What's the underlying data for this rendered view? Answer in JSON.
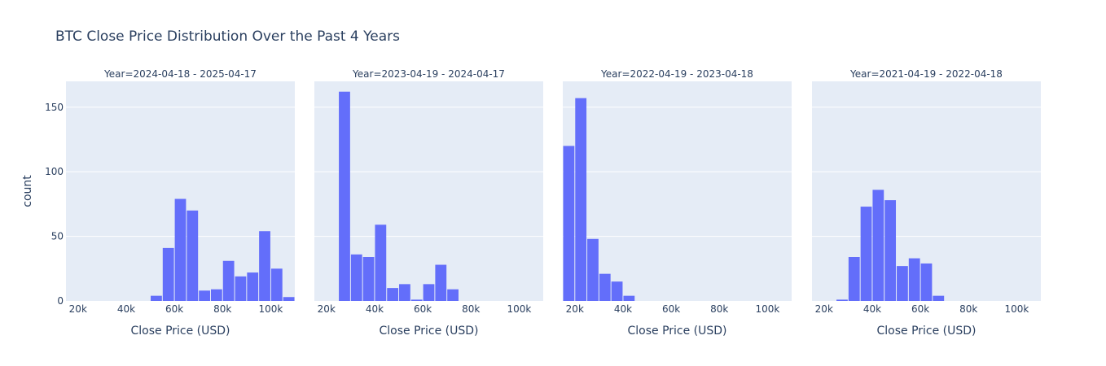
{
  "figure": {
    "title": "BTC Close Price Distribution Over the Past 4 Years",
    "ylabel": "count",
    "colors": {
      "bar": "#636efa",
      "plot_bg": "#e5ecf6",
      "grid": "#ffffff",
      "text": "#2a3f5f"
    }
  },
  "chart_data": [
    {
      "type": "bar",
      "facet": "Year=2024-04-18 - 2025-04-17",
      "xlabel": "Close Price (USD)",
      "ylabel": "count",
      "xlim": [
        15000,
        110000
      ],
      "ylim": [
        0,
        170
      ],
      "x_ticks": [
        20000,
        40000,
        60000,
        80000,
        100000
      ],
      "x_tick_labels": [
        "20k",
        "40k",
        "60k",
        "80k",
        "100k"
      ],
      "y_ticks": [
        0,
        50,
        100,
        150
      ],
      "y_tick_labels": [
        "0",
        "50",
        "100",
        "150"
      ],
      "bin_width": 5000,
      "bin_starts": [
        50000,
        55000,
        60000,
        65000,
        70000,
        75000,
        80000,
        85000,
        90000,
        95000,
        100000,
        105000
      ],
      "values": [
        4,
        41,
        79,
        70,
        8,
        9,
        31,
        19,
        22,
        54,
        25,
        3
      ]
    },
    {
      "type": "bar",
      "facet": "Year=2023-04-19 - 2024-04-17",
      "xlabel": "Close Price (USD)",
      "ylabel": "",
      "xlim": [
        15000,
        110000
      ],
      "ylim": [
        0,
        170
      ],
      "x_ticks": [
        20000,
        40000,
        60000,
        80000,
        100000
      ],
      "x_tick_labels": [
        "20k",
        "40k",
        "60k",
        "80k",
        "100k"
      ],
      "bin_width": 5000,
      "bin_starts": [
        25000,
        30000,
        35000,
        40000,
        45000,
        50000,
        55000,
        60000,
        65000,
        70000
      ],
      "values": [
        162,
        36,
        34,
        59,
        10,
        13,
        1,
        13,
        28,
        9
      ]
    },
    {
      "type": "bar",
      "facet": "Year=2022-04-19 - 2023-04-18",
      "xlabel": "Close Price (USD)",
      "ylabel": "",
      "xlim": [
        15000,
        110000
      ],
      "ylim": [
        0,
        170
      ],
      "x_ticks": [
        20000,
        40000,
        60000,
        80000,
        100000
      ],
      "x_tick_labels": [
        "20k",
        "40k",
        "60k",
        "80k",
        "100k"
      ],
      "bin_width": 5000,
      "bin_starts": [
        15000,
        20000,
        25000,
        30000,
        35000,
        40000
      ],
      "values": [
        120,
        157,
        48,
        21,
        15,
        4
      ]
    },
    {
      "type": "bar",
      "facet": "Year=2021-04-19 - 2022-04-18",
      "xlabel": "Close Price (USD)",
      "ylabel": "",
      "xlim": [
        15000,
        110000
      ],
      "ylim": [
        0,
        170
      ],
      "x_ticks": [
        20000,
        40000,
        60000,
        80000,
        100000
      ],
      "x_tick_labels": [
        "20k",
        "40k",
        "60k",
        "80k",
        "100k"
      ],
      "bin_width": 5000,
      "bin_starts": [
        25000,
        30000,
        35000,
        40000,
        45000,
        50000,
        55000,
        60000,
        65000
      ],
      "values": [
        1,
        34,
        73,
        86,
        78,
        27,
        33,
        29,
        4
      ]
    }
  ]
}
